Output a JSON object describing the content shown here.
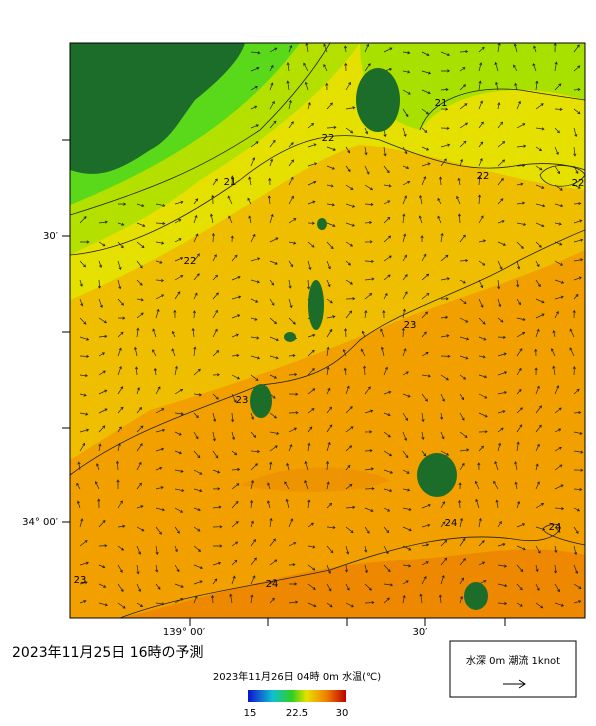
{
  "map": {
    "title": "2023年11月25日 16時の予測",
    "lat_labels": [
      "30′",
      "34° 00′"
    ],
    "lon_labels": [
      "139° 00′",
      "30′"
    ],
    "contour_labels": [
      "21",
      "21",
      "22",
      "22",
      "22",
      "22",
      "23",
      "23",
      "23",
      "24",
      "24",
      "24"
    ]
  },
  "colorbar": {
    "title": "2023年11月26日 04時 0m 水温(℃)",
    "ticks": [
      "15",
      "22.5",
      "30"
    ]
  },
  "legend": {
    "label": "水深 0m 潮流 1knot"
  }
}
